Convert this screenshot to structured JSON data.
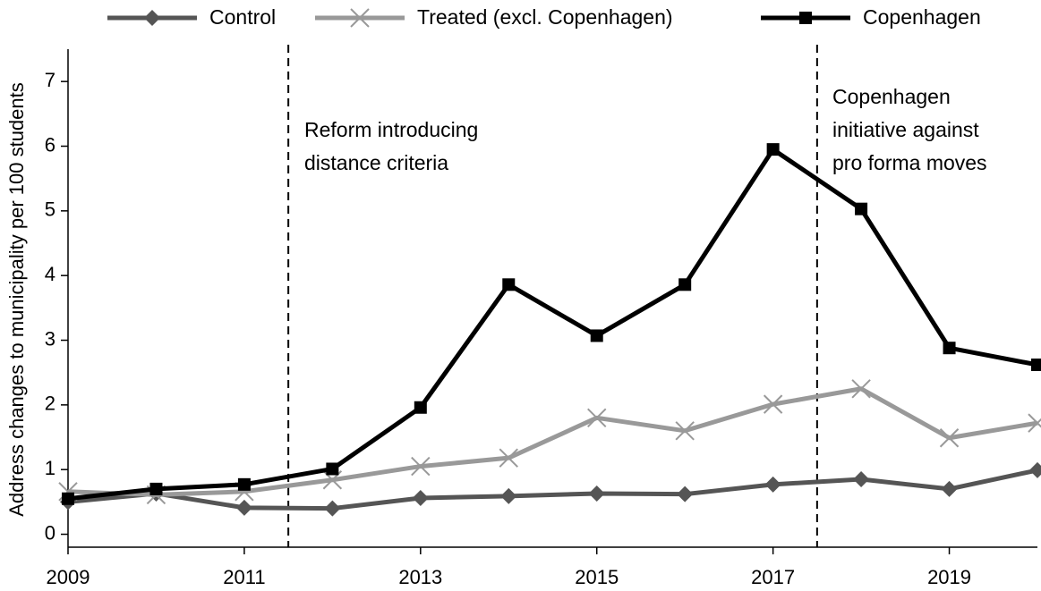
{
  "chart_data": {
    "type": "line",
    "y_label": "Address changes to municipality per 100 students",
    "x": [
      2009,
      2010,
      2011,
      2012,
      2013,
      2014,
      2015,
      2016,
      2017,
      2018,
      2019,
      2020
    ],
    "series": [
      {
        "name": "Control",
        "color": "#555555",
        "marker": "diamond",
        "values": [
          0.5,
          0.63,
          0.41,
          0.4,
          0.56,
          0.59,
          0.63,
          0.62,
          0.77,
          0.85,
          0.7,
          0.99
        ]
      },
      {
        "name": "Treated (excl. Copenhagen)",
        "color": "#999999",
        "marker": "x",
        "values": [
          0.66,
          0.61,
          0.66,
          0.84,
          1.05,
          1.18,
          1.8,
          1.6,
          2.01,
          2.25,
          1.49,
          1.72
        ]
      },
      {
        "name": "Copenhagen",
        "color": "#000000",
        "marker": "square",
        "values": [
          0.55,
          0.7,
          0.77,
          1.01,
          1.96,
          3.86,
          3.07,
          3.86,
          5.95,
          5.03,
          2.88,
          2.62
        ]
      }
    ],
    "xlim": [
      2009,
      2020
    ],
    "xticks": [
      2009,
      2011,
      2013,
      2015,
      2017,
      2019
    ],
    "ylim": [
      -0.2,
      7.5
    ],
    "yticks": [
      0,
      1,
      2,
      3,
      4,
      5,
      6,
      7
    ],
    "legend": "top",
    "vlines": [
      {
        "x": 2011.5,
        "label": [
          "Reform introducing",
          "distance criteria"
        ]
      },
      {
        "x": 2017.5,
        "label": [
          "Copenhagen",
          "initiative against",
          "pro forma moves"
        ]
      }
    ]
  }
}
